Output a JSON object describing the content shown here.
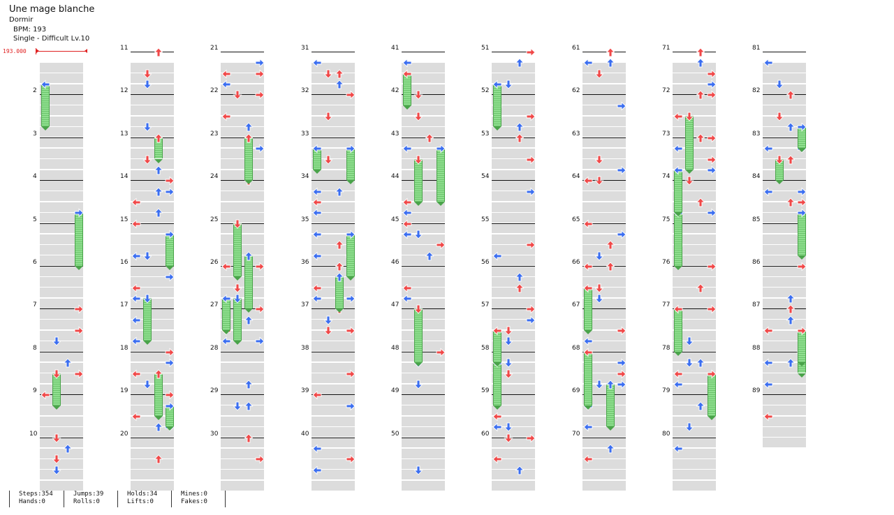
{
  "song": {
    "title": "Une mage blanche",
    "artist": "Dormir",
    "bpm_text": "BPM: 193",
    "difficulty": "Single - Difficult Lv.10"
  },
  "bpm_marker": "193.000",
  "colors": {
    "red": "#f04848",
    "blue": "#3b6ef0",
    "hold": "#8fdf8f"
  },
  "measures": [
    {
      "n": "2",
      "col": 0
    },
    {
      "n": "3",
      "col": 0
    },
    {
      "n": "4",
      "col": 0
    },
    {
      "n": "5",
      "col": 0
    },
    {
      "n": "6",
      "col": 0
    },
    {
      "n": "7",
      "col": 0
    },
    {
      "n": "8",
      "col": 0
    },
    {
      "n": "9",
      "col": 0
    },
    {
      "n": "10",
      "col": 0
    },
    {
      "n": "11",
      "col": 1
    },
    {
      "n": "12",
      "col": 1
    },
    {
      "n": "13",
      "col": 1
    },
    {
      "n": "14",
      "col": 1
    },
    {
      "n": "15",
      "col": 1
    },
    {
      "n": "16",
      "col": 1
    },
    {
      "n": "17",
      "col": 1
    },
    {
      "n": "18",
      "col": 1
    },
    {
      "n": "19",
      "col": 1
    },
    {
      "n": "20",
      "col": 1
    },
    {
      "n": "21",
      "col": 2
    },
    {
      "n": "22",
      "col": 2
    },
    {
      "n": "23",
      "col": 2
    },
    {
      "n": "24",
      "col": 2
    },
    {
      "n": "25",
      "col": 2
    },
    {
      "n": "26",
      "col": 2
    },
    {
      "n": "27",
      "col": 2
    },
    {
      "n": "28",
      "col": 2
    },
    {
      "n": "29",
      "col": 2
    },
    {
      "n": "30",
      "col": 2
    },
    {
      "n": "31",
      "col": 3
    },
    {
      "n": "32",
      "col": 3
    },
    {
      "n": "33",
      "col": 3
    },
    {
      "n": "34",
      "col": 3
    },
    {
      "n": "35",
      "col": 3
    },
    {
      "n": "36",
      "col": 3
    },
    {
      "n": "37",
      "col": 3
    },
    {
      "n": "38",
      "col": 3
    },
    {
      "n": "39",
      "col": 3
    },
    {
      "n": "40",
      "col": 3
    },
    {
      "n": "41",
      "col": 4
    },
    {
      "n": "42",
      "col": 4
    },
    {
      "n": "43",
      "col": 4
    },
    {
      "n": "44",
      "col": 4
    },
    {
      "n": "45",
      "col": 4
    },
    {
      "n": "46",
      "col": 4
    },
    {
      "n": "47",
      "col": 4
    },
    {
      "n": "48",
      "col": 4
    },
    {
      "n": "49",
      "col": 4
    },
    {
      "n": "50",
      "col": 4
    },
    {
      "n": "51",
      "col": 5
    },
    {
      "n": "52",
      "col": 5
    },
    {
      "n": "53",
      "col": 5
    },
    {
      "n": "54",
      "col": 5
    },
    {
      "n": "55",
      "col": 5
    },
    {
      "n": "56",
      "col": 5
    },
    {
      "n": "57",
      "col": 5
    },
    {
      "n": "58",
      "col": 5
    },
    {
      "n": "59",
      "col": 5
    },
    {
      "n": "60",
      "col": 5
    },
    {
      "n": "61",
      "col": 6
    },
    {
      "n": "62",
      "col": 6
    },
    {
      "n": "63",
      "col": 6
    },
    {
      "n": "64",
      "col": 6
    },
    {
      "n": "65",
      "col": 6
    },
    {
      "n": "66",
      "col": 6
    },
    {
      "n": "67",
      "col": 6
    },
    {
      "n": "68",
      "col": 6
    },
    {
      "n": "69",
      "col": 6
    },
    {
      "n": "70",
      "col": 6
    },
    {
      "n": "71",
      "col": 7
    },
    {
      "n": "72",
      "col": 7
    },
    {
      "n": "73",
      "col": 7
    },
    {
      "n": "74",
      "col": 7
    },
    {
      "n": "75",
      "col": 7
    },
    {
      "n": "76",
      "col": 7
    },
    {
      "n": "77",
      "col": 7
    },
    {
      "n": "78",
      "col": 7
    },
    {
      "n": "79",
      "col": 7
    },
    {
      "n": "80",
      "col": 7
    },
    {
      "n": "81",
      "col": 8
    },
    {
      "n": "82",
      "col": 8
    },
    {
      "n": "83",
      "col": 8
    },
    {
      "n": "84",
      "col": 8
    },
    {
      "n": "85",
      "col": 8
    },
    {
      "n": "86",
      "col": 8
    },
    {
      "n": "87",
      "col": 8
    },
    {
      "n": "88",
      "col": 8
    },
    {
      "n": "89",
      "col": 8
    }
  ],
  "stats": {
    "steps": "Steps:354",
    "hands": "Hands:0",
    "jumps": "Jumps:39",
    "rolls": "Rolls:0",
    "holds": "Holds:34",
    "lifts": "Lifts:0",
    "mines": "Mines:0",
    "fakes": "Fakes:0"
  }
}
